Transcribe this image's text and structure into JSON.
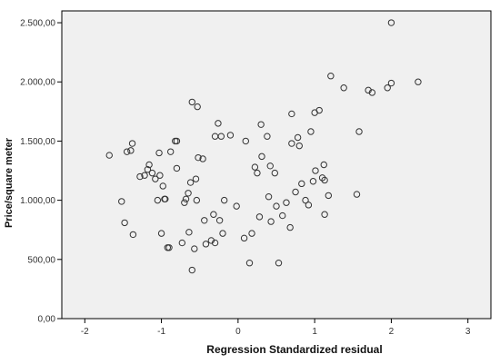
{
  "chart_data": {
    "type": "scatter",
    "title": "",
    "xlabel": "Regression Standardized residual",
    "ylabel": "Price/square  meter",
    "xlim": [
      -2.3,
      3.3
    ],
    "ylim": [
      0,
      2600
    ],
    "x_ticks": [
      -2,
      -1,
      0,
      1,
      2,
      3
    ],
    "x_tick_labels": [
      "-2",
      "-1",
      "0",
      "1",
      "2",
      "3"
    ],
    "y_ticks": [
      0,
      500,
      1000,
      1500,
      2000,
      2500
    ],
    "y_tick_labels": [
      "0,00",
      "500,00",
      "1.000,00",
      "1.500,00",
      "2.000,00",
      "2.500,00"
    ],
    "grid": false,
    "legend": "none",
    "colors": {
      "plot_background": "#f0f0f0",
      "marker_stroke": "#333333",
      "frame": "#000000"
    },
    "points": [
      [
        -1.68,
        1380
      ],
      [
        -1.52,
        990
      ],
      [
        -1.48,
        810
      ],
      [
        -1.45,
        1410
      ],
      [
        -1.4,
        1420
      ],
      [
        -1.38,
        1480
      ],
      [
        -1.37,
        710
      ],
      [
        -1.28,
        1200
      ],
      [
        -1.22,
        1210
      ],
      [
        -1.18,
        1260
      ],
      [
        -1.16,
        1300
      ],
      [
        -1.12,
        1230
      ],
      [
        -1.08,
        1180
      ],
      [
        -1.05,
        1000
      ],
      [
        -1.03,
        1400
      ],
      [
        -1.02,
        1210
      ],
      [
        -1.0,
        720
      ],
      [
        -0.98,
        1120
      ],
      [
        -0.96,
        1010
      ],
      [
        -0.95,
        1010
      ],
      [
        -0.92,
        600
      ],
      [
        -0.9,
        600
      ],
      [
        -0.88,
        1410
      ],
      [
        -0.82,
        1500
      ],
      [
        -0.8,
        1500
      ],
      [
        -0.8,
        1270
      ],
      [
        -0.73,
        640
      ],
      [
        -0.7,
        980
      ],
      [
        -0.68,
        1010
      ],
      [
        -0.65,
        1060
      ],
      [
        -0.64,
        730
      ],
      [
        -0.62,
        1150
      ],
      [
        -0.6,
        1830
      ],
      [
        -0.6,
        410
      ],
      [
        -0.57,
        590
      ],
      [
        -0.55,
        1180
      ],
      [
        -0.54,
        1000
      ],
      [
        -0.53,
        1790
      ],
      [
        -0.52,
        1360
      ],
      [
        -0.46,
        1350
      ],
      [
        -0.44,
        830
      ],
      [
        -0.42,
        630
      ],
      [
        -0.35,
        660
      ],
      [
        -0.32,
        880
      ],
      [
        -0.3,
        1540
      ],
      [
        -0.3,
        640
      ],
      [
        -0.26,
        1650
      ],
      [
        -0.24,
        830
      ],
      [
        -0.22,
        1540
      ],
      [
        -0.2,
        720
      ],
      [
        -0.18,
        1000
      ],
      [
        -0.1,
        1550
      ],
      [
        -0.02,
        950
      ],
      [
        0.08,
        680
      ],
      [
        0.1,
        1500
      ],
      [
        0.15,
        470
      ],
      [
        0.18,
        720
      ],
      [
        0.22,
        1280
      ],
      [
        0.25,
        1230
      ],
      [
        0.28,
        860
      ],
      [
        0.3,
        1640
      ],
      [
        0.31,
        1370
      ],
      [
        0.38,
        1540
      ],
      [
        0.4,
        1030
      ],
      [
        0.42,
        1290
      ],
      [
        0.43,
        820
      ],
      [
        0.48,
        1230
      ],
      [
        0.5,
        950
      ],
      [
        0.53,
        470
      ],
      [
        0.58,
        870
      ],
      [
        0.63,
        980
      ],
      [
        0.68,
        770
      ],
      [
        0.7,
        1730
      ],
      [
        0.7,
        1480
      ],
      [
        0.75,
        1070
      ],
      [
        0.78,
        1530
      ],
      [
        0.8,
        1460
      ],
      [
        0.83,
        1140
      ],
      [
        0.88,
        1000
      ],
      [
        0.92,
        960
      ],
      [
        0.95,
        1580
      ],
      [
        0.98,
        1160
      ],
      [
        1.0,
        1740
      ],
      [
        1.01,
        1250
      ],
      [
        1.06,
        1760
      ],
      [
        1.1,
        1190
      ],
      [
        1.12,
        1300
      ],
      [
        1.13,
        1170
      ],
      [
        1.13,
        880
      ],
      [
        1.18,
        1040
      ],
      [
        1.21,
        2050
      ],
      [
        1.38,
        1950
      ],
      [
        1.55,
        1050
      ],
      [
        1.58,
        1580
      ],
      [
        1.7,
        1930
      ],
      [
        1.75,
        1910
      ],
      [
        1.95,
        1950
      ],
      [
        2.0,
        1990
      ],
      [
        2.0,
        2500
      ],
      [
        2.35,
        2000
      ]
    ]
  }
}
